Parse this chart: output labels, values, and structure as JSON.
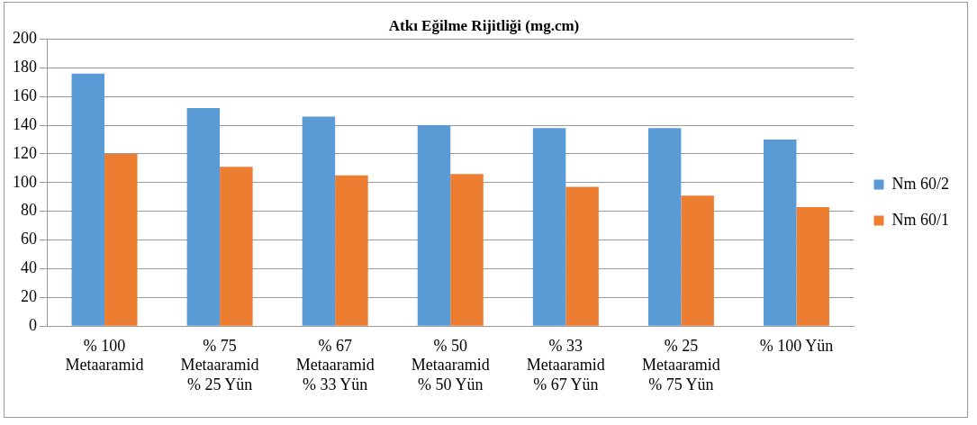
{
  "chart_data": {
    "type": "bar",
    "title": "Atkı Eğilme Rijitliği (mg.cm)",
    "categories": [
      "% 100\nMetaaramid",
      "% 75\nMetaaramid\n% 25 Yün",
      "% 67\nMetaaramid\n% 33 Yün",
      "% 50\nMetaaramid\n% 50 Yün",
      "% 33\nMetaaramid\n% 67 Yün",
      "% 25\nMetaaramid\n% 75 Yün",
      "% 100 Yün"
    ],
    "series": [
      {
        "name": "Nm 60/2",
        "color": "#5b9bd5",
        "values": [
          176,
          152,
          146,
          140,
          138,
          138,
          130
        ]
      },
      {
        "name": "Nm 60/1",
        "color": "#ed7d31",
        "values": [
          120,
          111,
          105,
          106,
          97,
          91,
          83
        ]
      }
    ],
    "ylim": [
      0,
      200
    ],
    "yticks": [
      0,
      20,
      40,
      60,
      80,
      100,
      120,
      140,
      160,
      180,
      200
    ],
    "grid": "y",
    "legend": "right"
  }
}
